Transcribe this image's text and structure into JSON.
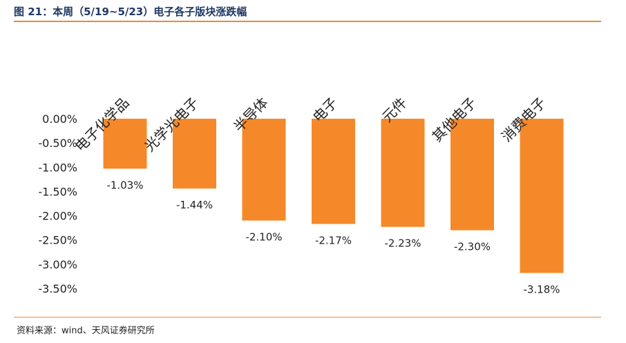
{
  "header": {
    "title": "图 21：本周（5/19~5/23）电子各子版块涨跌幅"
  },
  "footer": {
    "source": "资料来源：wind、天风证券研究所"
  },
  "colors": {
    "bar": "#f5892a",
    "rule": "#ea8a2d",
    "title": "#1f3864"
  },
  "chart_data": {
    "type": "bar",
    "categories": [
      "电子化学品",
      "光学光电子",
      "半导体",
      "电子",
      "元件",
      "其他电子",
      "消费电子"
    ],
    "values": [
      -1.03,
      -1.44,
      -2.1,
      -2.17,
      -2.23,
      -2.3,
      -3.18
    ],
    "value_labels": [
      "-1.03%",
      "-1.44%",
      "-2.10%",
      "-2.17%",
      "-2.23%",
      "-2.30%",
      "-3.18%"
    ],
    "yticks": [
      "0.00%",
      "-0.50%",
      "-1.00%",
      "-1.50%",
      "-2.00%",
      "-2.50%",
      "-3.00%",
      "-3.50%"
    ],
    "ylim": [
      -3.5,
      0
    ],
    "grid": false,
    "legend": "none",
    "category_axis": "top",
    "category_label_rotation": "diagonal"
  }
}
